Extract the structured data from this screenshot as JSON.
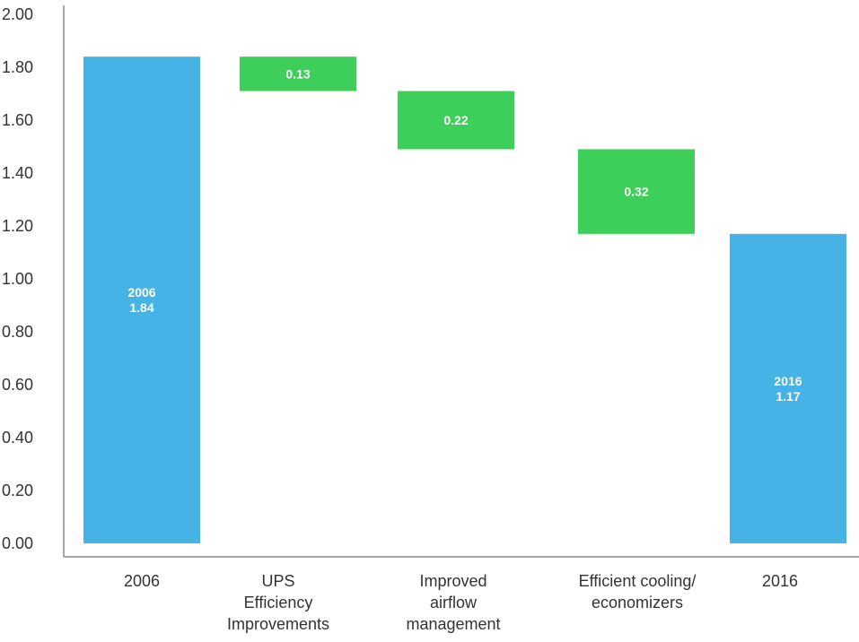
{
  "chart_data": {
    "type": "bar",
    "subtype": "waterfall",
    "title": "",
    "xlabel": "",
    "ylabel": "",
    "ylim": [
      0,
      2.0
    ],
    "yticks": [
      "0.00",
      "0.20",
      "0.40",
      "0.60",
      "0.80",
      "1.00",
      "1.20",
      "1.40",
      "1.60",
      "1.80",
      "2.00"
    ],
    "grid": false,
    "categories": [
      [
        "2006"
      ],
      [
        "UPS",
        "Efficiency",
        "Improvements"
      ],
      [
        "Improved",
        "airflow",
        "management"
      ],
      [
        "Efficient cooling/",
        "economizers"
      ],
      [
        "2016"
      ]
    ],
    "bars": [
      {
        "kind": "total",
        "start": 0,
        "end": 1.84,
        "labels": [
          "2006",
          "1.84"
        ]
      },
      {
        "kind": "decrease",
        "start": 1.84,
        "end": 1.71,
        "value": 0.13,
        "labels": [
          "0.13"
        ]
      },
      {
        "kind": "decrease",
        "start": 1.71,
        "end": 1.49,
        "value": 0.22,
        "labels": [
          "0.22"
        ]
      },
      {
        "kind": "decrease",
        "start": 1.49,
        "end": 1.17,
        "value": 0.32,
        "labels": [
          "0.32"
        ]
      },
      {
        "kind": "total",
        "start": 0,
        "end": 1.17,
        "labels": [
          "2016",
          "1.17"
        ]
      }
    ],
    "colors": {
      "total": "#45B3E6",
      "decrease": "#3ECF5B",
      "axis": "#888888",
      "text": "#333333"
    }
  }
}
